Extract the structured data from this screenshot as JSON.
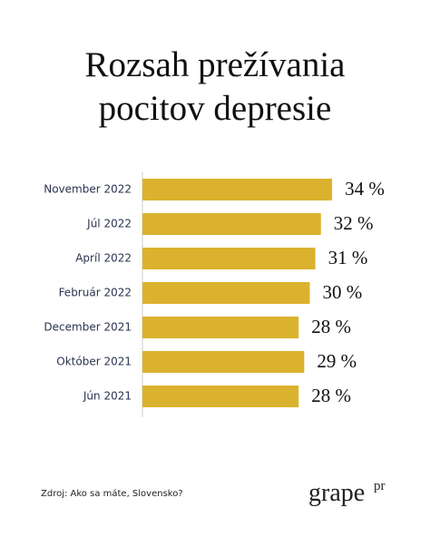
{
  "chart_data": {
    "type": "bar",
    "orientation": "horizontal",
    "title": "Rozsah prežívania pocitov depresie",
    "categories": [
      "November 2022",
      "Júl 2022",
      "Apríl 2022",
      "Február 2022",
      "December 2021",
      "Október 2021",
      "Jún 2021"
    ],
    "values": [
      34,
      32,
      31,
      30,
      28,
      29,
      28
    ],
    "value_labels": [
      "34 %",
      "32 %",
      "31 %",
      "30 %",
      "28 %",
      "29 %",
      "28 %"
    ],
    "color": "#dbb22e"
  },
  "source": "Zdroj: Ako sa máte, Slovensko?",
  "logo": {
    "text": "grape",
    "superscript": "pr"
  }
}
